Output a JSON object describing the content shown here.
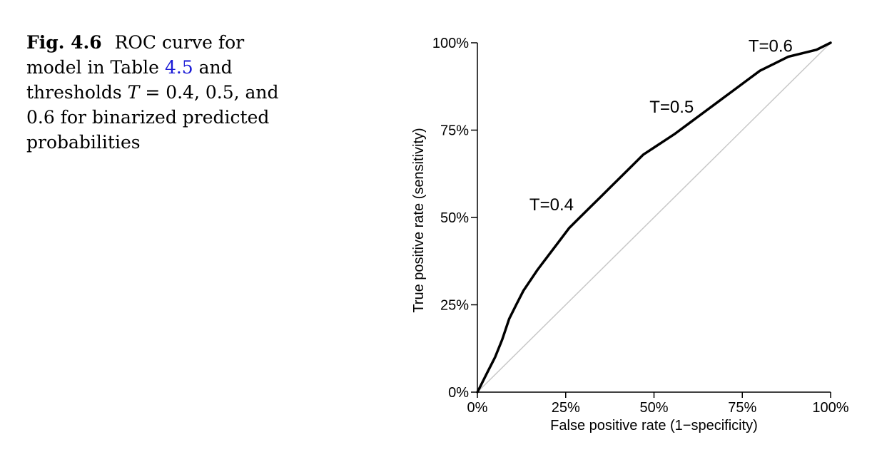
{
  "caption": {
    "label": "Fig. 4.6",
    "text_before_ref": "ROC curve for model in Table",
    "table_ref": "4.5",
    "text_after_ref": "and thresholds",
    "math_var": "T",
    "math_rest": "= 0.4, 0.5, and 0.6 for binarized predicted probabilities"
  },
  "chart_data": {
    "type": "line",
    "xlabel": "False positive rate (1−specificity)",
    "ylabel": "True positive rate (sensitivity)",
    "xlim": [
      0,
      1
    ],
    "ylim": [
      0,
      1
    ],
    "x_ticks": [
      {
        "value": 0,
        "label": "0%"
      },
      {
        "value": 0.25,
        "label": "25%"
      },
      {
        "value": 0.5,
        "label": "50%"
      },
      {
        "value": 0.75,
        "label": "75%"
      },
      {
        "value": 1,
        "label": "100%"
      }
    ],
    "y_ticks": [
      {
        "value": 0,
        "label": "0%"
      },
      {
        "value": 0.25,
        "label": "25%"
      },
      {
        "value": 0.5,
        "label": "50%"
      },
      {
        "value": 0.75,
        "label": "75%"
      },
      {
        "value": 1,
        "label": "100%"
      }
    ],
    "grid": false,
    "reference_line": {
      "x": [
        0,
        1
      ],
      "y": [
        0,
        1
      ],
      "color": "#c8c8c8"
    },
    "series": [
      {
        "color": "#000000",
        "x": [
          0,
          0.01,
          0.02,
          0.03,
          0.05,
          0.07,
          0.09,
          0.11,
          0.13,
          0.15,
          0.17,
          0.2,
          0.23,
          0.26,
          0.29,
          0.32,
          0.35,
          0.38,
          0.41,
          0.44,
          0.47,
          0.5,
          0.53,
          0.56,
          0.6,
          0.64,
          0.68,
          0.72,
          0.76,
          0.8,
          0.84,
          0.88,
          0.92,
          0.96,
          1.0
        ],
        "y": [
          0,
          0.02,
          0.04,
          0.06,
          0.1,
          0.15,
          0.21,
          0.25,
          0.29,
          0.32,
          0.35,
          0.39,
          0.43,
          0.47,
          0.5,
          0.53,
          0.56,
          0.59,
          0.62,
          0.65,
          0.68,
          0.7,
          0.72,
          0.74,
          0.77,
          0.8,
          0.83,
          0.86,
          0.89,
          0.92,
          0.94,
          0.96,
          0.97,
          0.98,
          1.0
        ]
      }
    ],
    "annotations": [
      {
        "text": "T=0.4",
        "x": 0.21,
        "y": 0.52
      },
      {
        "text": "T=0.5",
        "x": 0.55,
        "y": 0.8
      },
      {
        "text": "T=0.6",
        "x": 0.83,
        "y": 0.975
      }
    ]
  }
}
